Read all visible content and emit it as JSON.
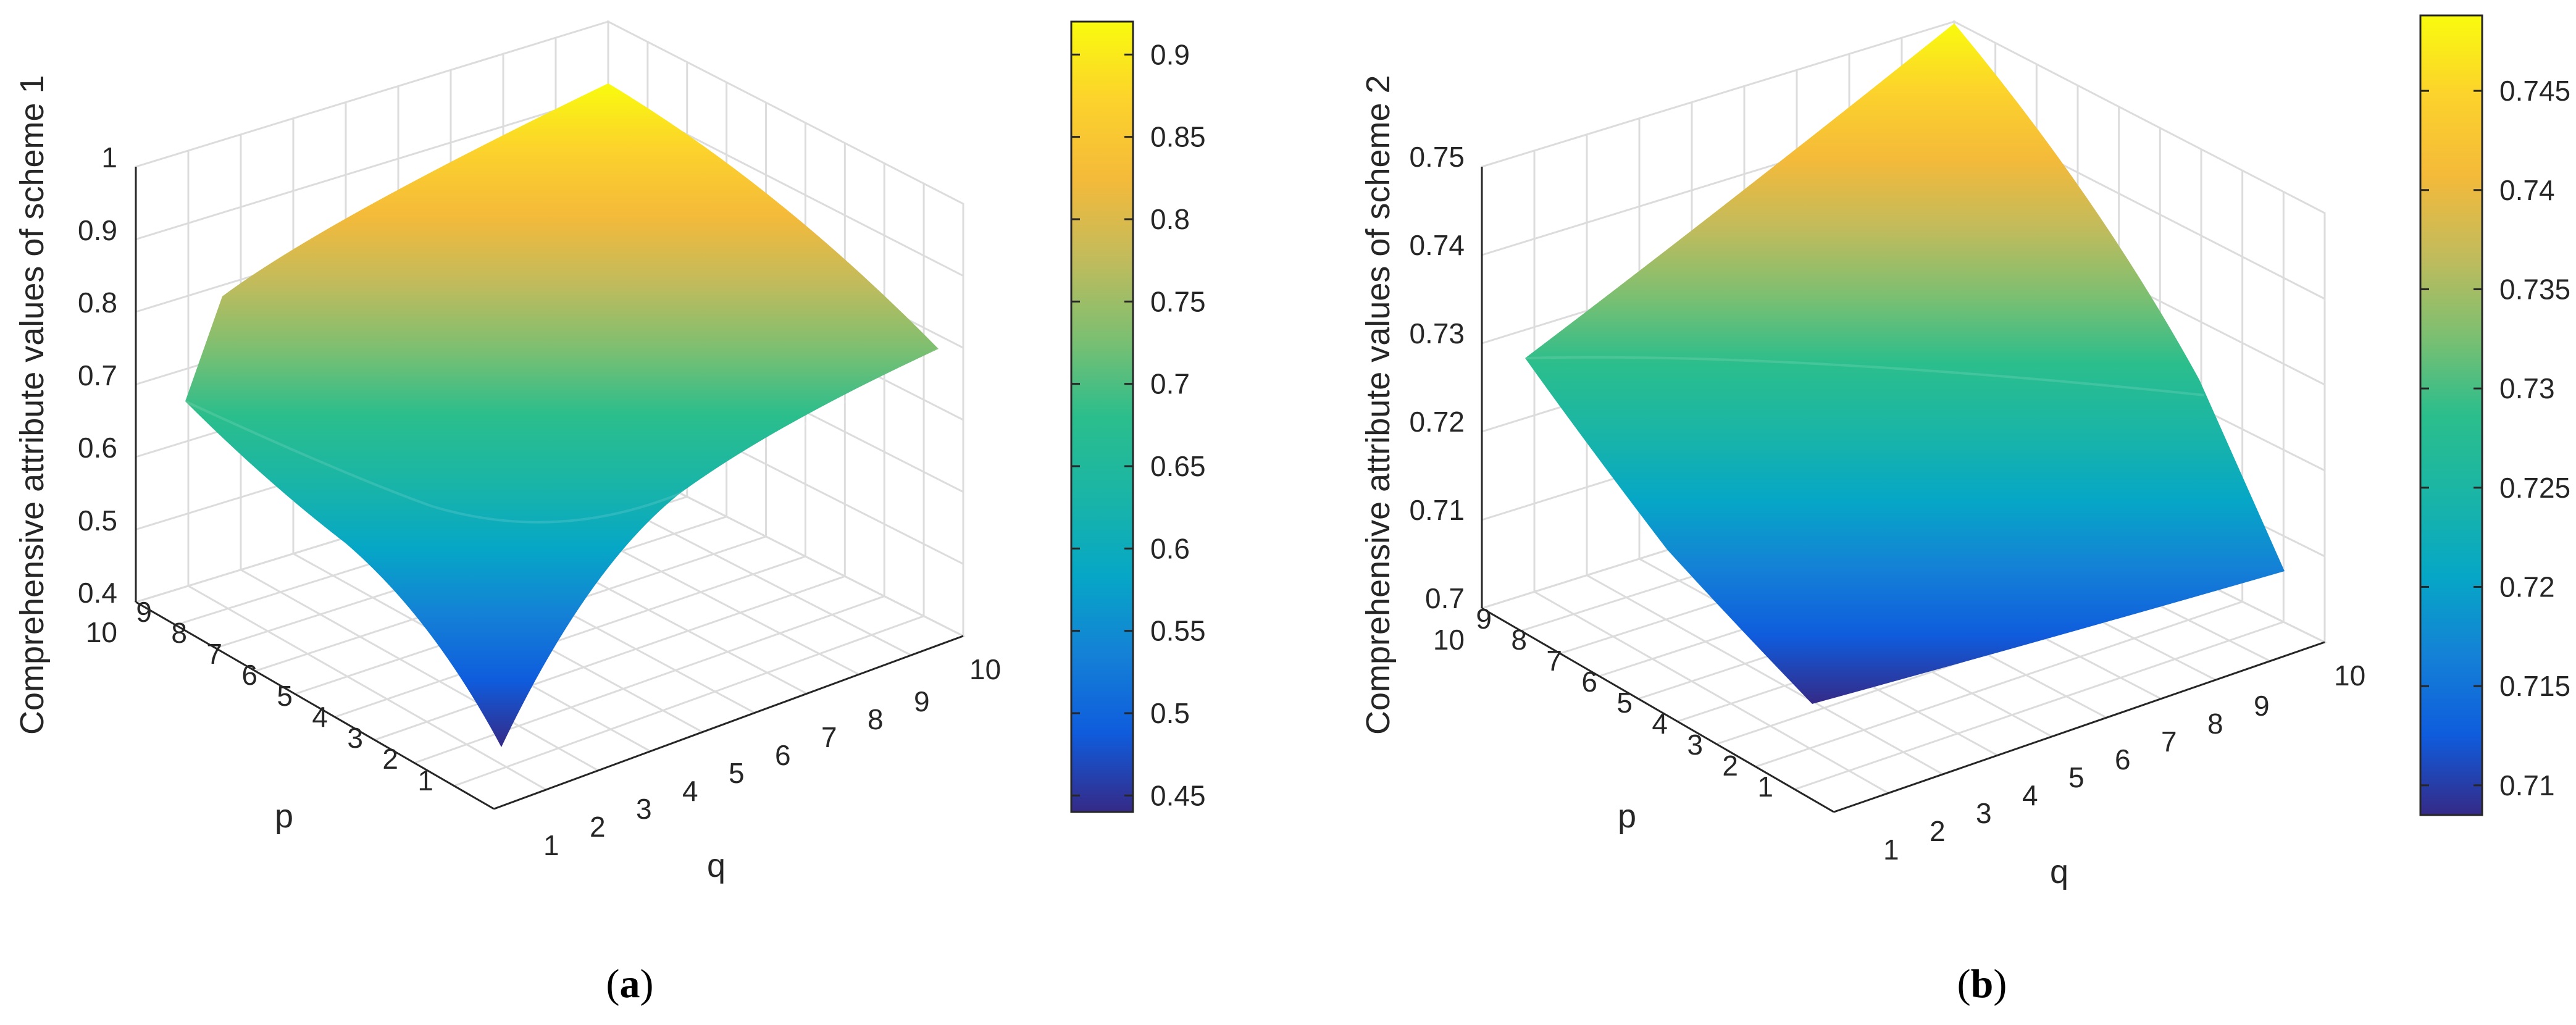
{
  "chart_data": [
    {
      "type": "surface",
      "panel_label": "a",
      "zlabel": "Comprehensive attribute values of scheme 1",
      "xlabel": "q",
      "ylabel": "p",
      "x_ticks": [
        "1",
        "2",
        "3",
        "4",
        "5",
        "6",
        "7",
        "8",
        "9",
        "10"
      ],
      "y_ticks": [
        "1",
        "2",
        "3",
        "4",
        "5",
        "6",
        "7",
        "8",
        "9",
        "10"
      ],
      "z_ticks": [
        "0.4",
        "0.5",
        "0.6",
        "0.7",
        "0.8",
        "0.9",
        "1"
      ],
      "zlim": [
        0.4,
        1.0
      ],
      "colorbar_ticks": [
        "0.45",
        "0.5",
        "0.55",
        "0.6",
        "0.65",
        "0.7",
        "0.75",
        "0.8",
        "0.85",
        "0.9"
      ],
      "colorbar_range": [
        0.44,
        0.92
      ],
      "colormap": "parula",
      "surface_corners": {
        "p1_q1": 0.44,
        "p10_q1": 0.68,
        "p1_q10": 0.74,
        "p10_q10": 0.92
      },
      "grid": true
    },
    {
      "type": "surface",
      "panel_label": "b",
      "zlabel": "Comprehensive attribute values of scheme 2",
      "xlabel": "q",
      "ylabel": "p",
      "x_ticks": [
        "1",
        "2",
        "3",
        "4",
        "5",
        "6",
        "7",
        "8",
        "9",
        "10"
      ],
      "y_ticks": [
        "1",
        "2",
        "3",
        "4",
        "5",
        "6",
        "7",
        "8",
        "9",
        "10"
      ],
      "z_ticks": [
        "0.7",
        "0.71",
        "0.72",
        "0.73",
        "0.74",
        "0.75"
      ],
      "zlim": [
        0.7,
        0.75
      ],
      "colorbar_ticks": [
        "0.71",
        "0.715",
        "0.72",
        "0.725",
        "0.73",
        "0.735",
        "0.74",
        "0.745"
      ],
      "colorbar_range": [
        0.7085,
        0.7488
      ],
      "colormap": "parula",
      "surface_corners": {
        "p1_q1": 0.7085,
        "p10_q1": 0.7265,
        "p1_q10": 0.7115,
        "p10_q10": 0.7488
      },
      "grid": true
    }
  ]
}
